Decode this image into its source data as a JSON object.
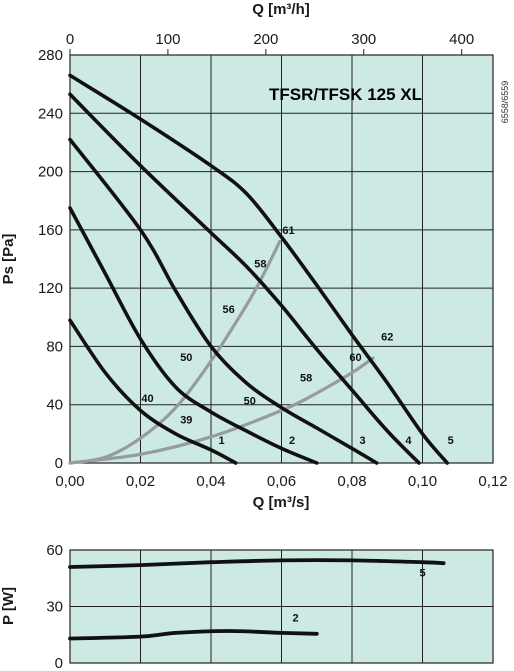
{
  "chart_data": [
    {
      "type": "line",
      "title": "TFSR/TFSK 125 XL",
      "code": "6558/6559",
      "xlabel": "Q [m³/s]",
      "x2label": "Q [m³/h]",
      "ylabel": "Ps [Pa]",
      "xlim": [
        0,
        0.12
      ],
      "ylim": [
        0,
        280
      ],
      "xticks": [
        "0,00",
        "0,02",
        "0,04",
        "0,06",
        "0,08",
        "0,10",
        "0,12"
      ],
      "x2ticks": [
        "0",
        "100",
        "200",
        "300",
        "400"
      ],
      "yticks": [
        "0",
        "40",
        "80",
        "120",
        "160",
        "200",
        "240",
        "280"
      ],
      "grid": true,
      "series": [
        {
          "name": "1",
          "points": [
            [
              0,
              98
            ],
            [
              0.01,
              62
            ],
            [
              0.02,
              36
            ],
            [
              0.03,
              20
            ],
            [
              0.04,
              9
            ],
            [
              0.047,
              0
            ]
          ]
        },
        {
          "name": "2",
          "points": [
            [
              0,
              175
            ],
            [
              0.01,
              130
            ],
            [
              0.02,
              85
            ],
            [
              0.03,
              52
            ],
            [
              0.04,
              35
            ],
            [
              0.05,
              22
            ],
            [
              0.06,
              10
            ],
            [
              0.07,
              0
            ]
          ]
        },
        {
          "name": "3",
          "points": [
            [
              0,
              222
            ],
            [
              0.02,
              160
            ],
            [
              0.03,
              118
            ],
            [
              0.04,
              80
            ],
            [
              0.05,
              55
            ],
            [
              0.06,
              38
            ],
            [
              0.07,
              24
            ],
            [
              0.08,
              10
            ],
            [
              0.087,
              0
            ]
          ]
        },
        {
          "name": "4",
          "points": [
            [
              0,
              253
            ],
            [
              0.02,
              204
            ],
            [
              0.04,
              158
            ],
            [
              0.05,
              135
            ],
            [
              0.06,
              108
            ],
            [
              0.07,
              78
            ],
            [
              0.08,
              50
            ],
            [
              0.09,
              22
            ],
            [
              0.099,
              0
            ]
          ]
        },
        {
          "name": "5",
          "points": [
            [
              0,
              266
            ],
            [
              0.02,
              236
            ],
            [
              0.04,
              204
            ],
            [
              0.05,
              185
            ],
            [
              0.06,
              155
            ],
            [
              0.07,
              122
            ],
            [
              0.08,
              88
            ],
            [
              0.09,
              55
            ],
            [
              0.1,
              20
            ],
            [
              0.107,
              0
            ]
          ]
        }
      ],
      "efficiency_curves": [
        {
          "points": [
            [
              0,
              0
            ],
            [
              0.01,
              4
            ],
            [
              0.02,
              17
            ],
            [
              0.03,
              38
            ],
            [
              0.04,
              70
            ],
            [
              0.05,
              108
            ],
            [
              0.055,
              130
            ],
            [
              0.0595,
              152
            ]
          ]
        },
        {
          "points": [
            [
              0,
              0
            ],
            [
              0.02,
              6
            ],
            [
              0.04,
              18
            ],
            [
              0.06,
              36
            ],
            [
              0.07,
              48
            ],
            [
              0.08,
              62
            ],
            [
              0.086,
              72
            ]
          ]
        }
      ],
      "annotations": [
        {
          "text": "61",
          "x": 0.062,
          "y": 157
        },
        {
          "text": "58",
          "x": 0.054,
          "y": 134
        },
        {
          "text": "56",
          "x": 0.045,
          "y": 103
        },
        {
          "text": "50",
          "x": 0.033,
          "y": 70
        },
        {
          "text": "40",
          "x": 0.022,
          "y": 42
        },
        {
          "text": "39",
          "x": 0.033,
          "y": 27
        },
        {
          "text": "50",
          "x": 0.051,
          "y": 40
        },
        {
          "text": "58",
          "x": 0.067,
          "y": 56
        },
        {
          "text": "60",
          "x": 0.081,
          "y": 70
        },
        {
          "text": "62",
          "x": 0.09,
          "y": 84
        },
        {
          "text": "1",
          "x": 0.043,
          "y": 13
        },
        {
          "text": "2",
          "x": 0.063,
          "y": 13
        },
        {
          "text": "3",
          "x": 0.083,
          "y": 13
        },
        {
          "text": "4",
          "x": 0.096,
          "y": 13
        },
        {
          "text": "5",
          "x": 0.108,
          "y": 13
        }
      ]
    },
    {
      "type": "line",
      "ylabel": "P [W]",
      "xlim": [
        0,
        0.12
      ],
      "ylim": [
        0,
        60
      ],
      "yticks": [
        "0",
        "30",
        "60"
      ],
      "grid": true,
      "series": [
        {
          "name": "5",
          "points": [
            [
              0,
              51
            ],
            [
              0.02,
              52
            ],
            [
              0.04,
              53.5
            ],
            [
              0.06,
              54.5
            ],
            [
              0.08,
              54.5
            ],
            [
              0.1,
              53.5
            ],
            [
              0.106,
              53
            ]
          ]
        },
        {
          "name": "2",
          "points": [
            [
              0,
              13
            ],
            [
              0.02,
              14
            ],
            [
              0.03,
              16
            ],
            [
              0.045,
              17
            ],
            [
              0.06,
              16
            ],
            [
              0.07,
              15.5
            ]
          ]
        }
      ],
      "annotations": [
        {
          "text": "5",
          "x": 0.1,
          "y": 46
        },
        {
          "text": "2",
          "x": 0.064,
          "y": 22
        }
      ]
    }
  ]
}
